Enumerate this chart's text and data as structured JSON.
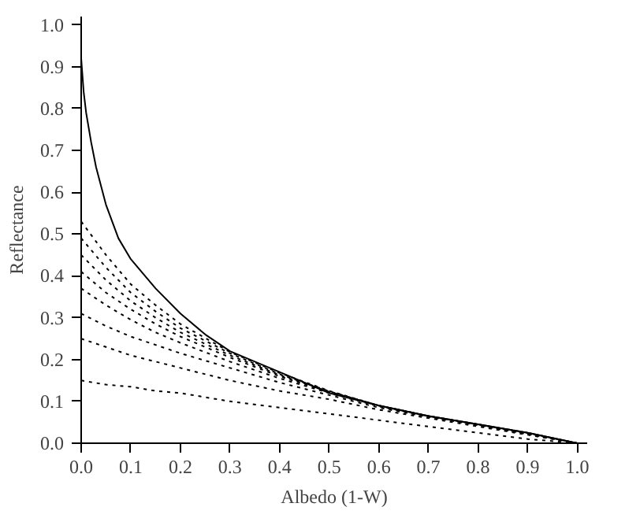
{
  "chart_data": {
    "type": "line",
    "xlabel": "Albedo (1-W)",
    "ylabel": "Reflectance",
    "x": [
      0,
      0.05,
      0.1,
      0.15,
      0.2,
      0.3,
      0.4,
      0.5,
      0.6,
      0.7,
      0.8,
      0.9,
      1.0
    ],
    "series": [
      {
        "color": "#000000",
        "line_style": "solid",
        "x": [
          0,
          0.005,
          0.01,
          0.02,
          0.03,
          0.05,
          0.075,
          0.1,
          0.15,
          0.2,
          0.25,
          0.3,
          0.4,
          0.5,
          0.6,
          0.7,
          0.8,
          0.9,
          1.0
        ],
        "values": [
          0.92,
          0.84,
          0.79,
          0.72,
          0.66,
          0.57,
          0.49,
          0.44,
          0.37,
          0.31,
          0.26,
          0.22,
          0.17,
          0.12,
          0.09,
          0.065,
          0.045,
          0.025,
          0.0
        ]
      },
      {
        "color": "#000000",
        "line_style": "dotted",
        "values": [
          0.53,
          0.45,
          0.38,
          0.33,
          0.285,
          0.218,
          0.168,
          0.125,
          0.09,
          0.065,
          0.045,
          0.025,
          0
        ]
      },
      {
        "color": "#000000",
        "line_style": "dotted",
        "values": [
          0.49,
          0.42,
          0.36,
          0.315,
          0.275,
          0.215,
          0.165,
          0.124,
          0.09,
          0.065,
          0.045,
          0.025,
          0
        ]
      },
      {
        "color": "#000000",
        "line_style": "dotted",
        "values": [
          0.45,
          0.39,
          0.34,
          0.3,
          0.265,
          0.21,
          0.163,
          0.123,
          0.09,
          0.065,
          0.045,
          0.024,
          0
        ]
      },
      {
        "color": "#000000",
        "line_style": "dotted",
        "values": [
          0.41,
          0.36,
          0.32,
          0.285,
          0.255,
          0.205,
          0.16,
          0.122,
          0.09,
          0.065,
          0.045,
          0.024,
          0
        ]
      },
      {
        "color": "#000000",
        "line_style": "dotted",
        "values": [
          0.37,
          0.33,
          0.295,
          0.265,
          0.24,
          0.195,
          0.155,
          0.12,
          0.088,
          0.064,
          0.044,
          0.023,
          0
        ]
      },
      {
        "color": "#000000",
        "line_style": "dotted",
        "values": [
          0.31,
          0.28,
          0.255,
          0.235,
          0.215,
          0.18,
          0.145,
          0.115,
          0.085,
          0.063,
          0.043,
          0.022,
          0
        ]
      },
      {
        "color": "#000000",
        "line_style": "dotted",
        "values": [
          0.25,
          0.23,
          0.21,
          0.195,
          0.18,
          0.15,
          0.125,
          0.105,
          0.08,
          0.06,
          0.04,
          0.02,
          0
        ]
      },
      {
        "color": "#000000",
        "line_style": "dotted",
        "values": [
          0.15,
          0.14,
          0.135,
          0.125,
          0.12,
          0.1,
          0.085,
          0.07,
          0.055,
          0.04,
          0.025,
          0.01,
          0
        ]
      }
    ],
    "xlim": [
      0,
      1.02
    ],
    "ylim": [
      0,
      1.02
    ],
    "xticks": [
      {
        "value": 0,
        "label": "0.0"
      },
      {
        "value": 0.1,
        "label": "0.1"
      },
      {
        "value": 0.2,
        "label": "0.2"
      },
      {
        "value": 0.3,
        "label": "0.3"
      },
      {
        "value": 0.4,
        "label": "0.4"
      },
      {
        "value": 0.5,
        "label": "0.5"
      },
      {
        "value": 0.6,
        "label": "0.6"
      },
      {
        "value": 0.7,
        "label": "0.7"
      },
      {
        "value": 0.8,
        "label": "0.8"
      },
      {
        "value": 0.9,
        "label": "0.9"
      },
      {
        "value": 1.0,
        "label": "1.0"
      }
    ],
    "yticks": [
      {
        "value": 0,
        "label": "0.0"
      },
      {
        "value": 0.1,
        "label": "0.1"
      },
      {
        "value": 0.2,
        "label": "0.2"
      },
      {
        "value": 0.3,
        "label": "0.3"
      },
      {
        "value": 0.4,
        "label": "0.4"
      },
      {
        "value": 0.5,
        "label": "0.5"
      },
      {
        "value": 0.6,
        "label": "0.6"
      },
      {
        "value": 0.7,
        "label": "0.7"
      },
      {
        "value": 0.8,
        "label": "0.8"
      },
      {
        "value": 0.9,
        "label": "0.9"
      },
      {
        "value": 1.0,
        "label": "1.0"
      }
    ],
    "grid": false
  }
}
